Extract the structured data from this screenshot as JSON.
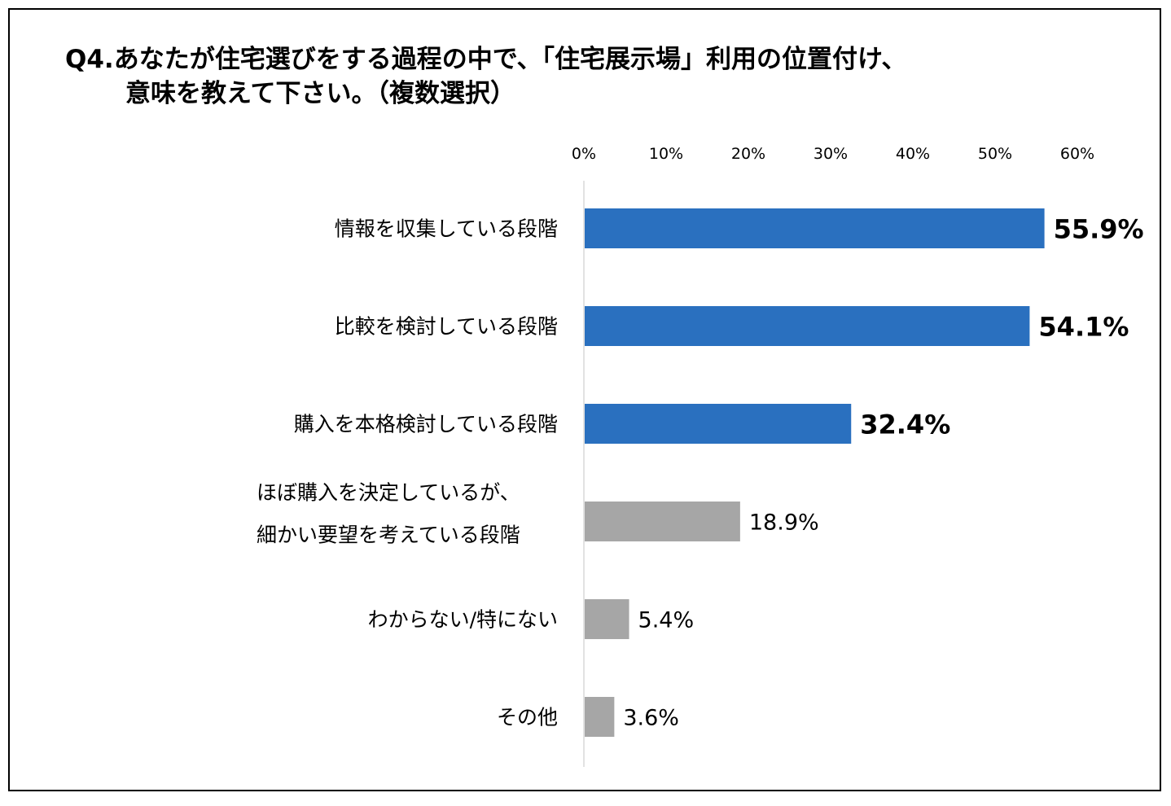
{
  "title": {
    "line1": "Q4.あなたが住宅選びをする過程の中で、「住宅展示場」利用の位置付け、",
    "line2": "意味を教えて下さい。（複数選択）"
  },
  "chart_data": {
    "type": "bar",
    "orientation": "horizontal",
    "title": "Q4.あなたが住宅選びをする過程の中で、「住宅展示場」利用の位置付け、意味を教えて下さい。（複数選択）",
    "categories": [
      [
        "情報を収集している段階"
      ],
      [
        "比較を検討している段階"
      ],
      [
        "購入を本格検討している段階"
      ],
      [
        "ほぼ購入を決定しているが、",
        "細かい要望を考えている段階"
      ],
      [
        "わからない/特にない"
      ],
      [
        "その他"
      ]
    ],
    "values": [
      55.9,
      54.1,
      32.4,
      18.9,
      5.4,
      3.6
    ],
    "value_labels": [
      "55.9%",
      "54.1%",
      "32.4%",
      "18.9%",
      "5.4%",
      "3.6%"
    ],
    "highlighted": [
      true,
      true,
      true,
      false,
      false,
      false
    ],
    "x_ticks": [
      0,
      10,
      20,
      30,
      40,
      50,
      60
    ],
    "x_tick_labels": [
      "0%",
      "10%",
      "20%",
      "30%",
      "40%",
      "50%",
      "60%"
    ],
    "xlim": [
      0,
      60
    ],
    "axis_position": "top",
    "grid": false,
    "colors": {
      "highlight": "#2a70bf",
      "normal": "#a6a6a6",
      "axis": "#d9d9d9"
    }
  }
}
